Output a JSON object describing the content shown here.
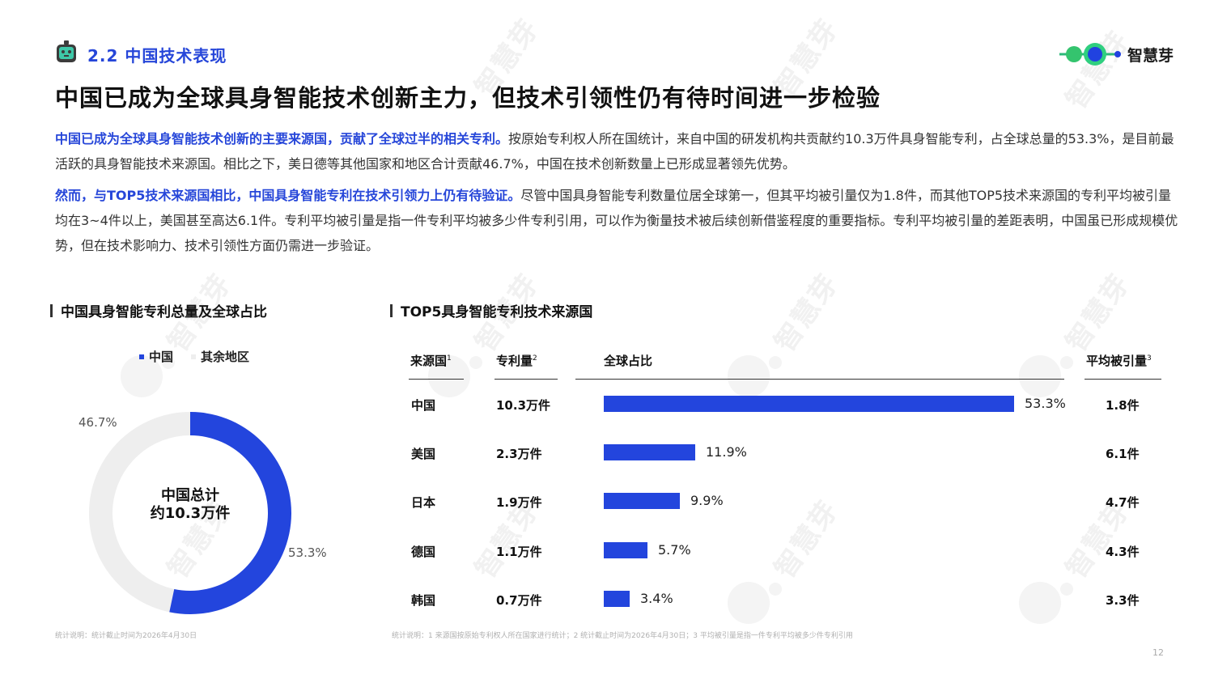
{
  "header": {
    "section_label": "2.2 中国技术表现",
    "brand_name": "智慧芽",
    "headline": "中国已成为全球具身智能技术创新主力，但技术引领性仍有待时间进一步检验"
  },
  "paragraphs": {
    "p1_highlight": "中国已成为全球具身智能技术创新的主要来源国，贡献了全球过半的相关专利。",
    "p1_body": "按原始专利权人所在国统计，来自中国的研发机构共贡献约10.3万件具身智能专利，占全球总量的53.3%，是目前最活跃的具身智能技术来源国。相比之下，美日德等其他国家和地区合计贡献46.7%，中国在技术创新数量上已形成显著领先优势。",
    "p2_highlight": "然而，与TOP5技术来源国相比，中国具身智能专利在技术引领力上仍有待验证。",
    "p2_body": "尽管中国具身智能专利数量位居全球第一，但其平均被引量仅为1.8件，而其他TOP5技术来源国的专利平均被引量均在3~4件以上，美国甚至高达6.1件。专利平均被引量是指一件专利平均被多少件专利引用，可以作为衡量技术被后续创新借鉴程度的重要指标。专利平均被引量的差距表明，中国虽已形成规模优势，但在技术影响力、技术引领性方面仍需进一步验证。"
  },
  "left_panel": {
    "title": "中国具身智能专利总量及全球占比",
    "legend": [
      "中国",
      "其余地区"
    ],
    "center_line1": "中国总计",
    "center_line2": "约10.3万件",
    "label_china": "53.3%",
    "label_rest": "46.7%",
    "note": "统计说明：统计截止时间为2026年4月30日"
  },
  "right_panel": {
    "title": "TOP5具身智能专利技术来源国",
    "col_country": "来源国",
    "col_country_sup": "1",
    "col_count": "专利量",
    "col_count_sup": "2",
    "col_share": "全球占比",
    "col_cite": "平均被引量",
    "col_cite_sup": "3",
    "rows": [
      {
        "country": "中国",
        "count": "10.3万件",
        "share": "53.3%",
        "cite": "1.8件"
      },
      {
        "country": "美国",
        "count": "2.3万件",
        "share": "11.9%",
        "cite": "6.1件"
      },
      {
        "country": "日本",
        "count": "1.9万件",
        "share": "9.9%",
        "cite": "4.7件"
      },
      {
        "country": "德国",
        "count": "1.1万件",
        "share": "5.7%",
        "cite": "4.3件"
      },
      {
        "country": "韩国",
        "count": "0.7万件",
        "share": "3.4%",
        "cite": "3.3件"
      }
    ],
    "note": "统计说明：1 来源国按原始专利权人所在国家进行统计；2 统计截止时间为2026年4月30日；3 平均被引量是指一件专利平均被多少件专利引用"
  },
  "page_number": "12",
  "watermark_text": "智慧芽",
  "colors": {
    "accent": "#2345dd",
    "donut_rest": "#eeeeee",
    "text_highlight": "#2646d9"
  },
  "chart_data": [
    {
      "type": "pie",
      "variant": "donut",
      "title": "中国具身智能专利总量及全球占比",
      "categories": [
        "中国",
        "其余地区"
      ],
      "values": [
        53.3,
        46.7
      ],
      "unit": "%"
    },
    {
      "type": "bar",
      "orientation": "horizontal",
      "title": "TOP5具身智能专利技术来源国",
      "categories": [
        "中国",
        "美国",
        "日本",
        "德国",
        "韩国"
      ],
      "series": [
        {
          "name": "全球占比",
          "values": [
            53.3,
            11.9,
            9.9,
            5.7,
            3.4
          ]
        }
      ],
      "xlim": [
        0,
        53.3
      ]
    }
  ]
}
